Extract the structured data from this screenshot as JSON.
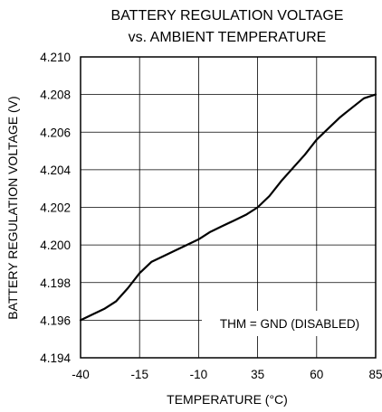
{
  "chart_data": {
    "type": "line",
    "title_line1": "BATTERY REGULATION VOLTAGE",
    "title_line2": "vs. AMBIENT TEMPERATURE",
    "xlabel": "TEMPERATURE (°C)",
    "ylabel": "BATTERY REGULATION VOLTAGE (V)",
    "x_tick_labels": [
      "-40",
      "-15",
      "-10",
      "35",
      "60",
      "85"
    ],
    "ylim": [
      4.194,
      4.21
    ],
    "y_ticks": [
      "4.194",
      "4.196",
      "4.198",
      "4.200",
      "4.202",
      "4.204",
      "4.206",
      "4.208",
      "4.210"
    ],
    "grid": true,
    "annotation": "THM = GND (DISABLED)",
    "series": [
      {
        "x": [
          -40,
          -35,
          -30,
          -25,
          -20,
          -15,
          -10,
          -5,
          0,
          5,
          10,
          15,
          20,
          25,
          30,
          35,
          40,
          45,
          50,
          55,
          60,
          65,
          70,
          75,
          80,
          85
        ],
        "y": [
          4.196,
          4.1963,
          4.1966,
          4.197,
          4.1977,
          4.1985,
          4.1991,
          4.1994,
          4.1997,
          4.2,
          4.2003,
          4.2007,
          4.201,
          4.2013,
          4.2016,
          4.202,
          4.2026,
          4.2034,
          4.2041,
          4.2048,
          4.2056,
          4.2062,
          4.2068,
          4.2073,
          4.2078,
          4.208
        ],
        "color": "#000000"
      }
    ]
  }
}
